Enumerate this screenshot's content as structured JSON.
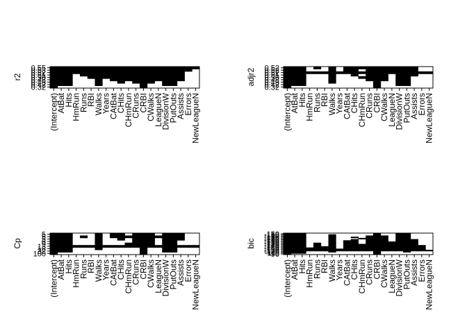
{
  "figure": {
    "background": "#ffffff",
    "fill_color": "#000000"
  },
  "chart_data": [
    {
      "type": "heatmap",
      "ylabel": "r2",
      "variables": [
        "(Intercept)",
        "AtBat",
        "Hits",
        "HmRun",
        "Runs",
        "RBI",
        "Walks",
        "Years",
        "CAtBat",
        "CHits",
        "CHmRun",
        "CRuns",
        "CRBI",
        "CWalks",
        "LeagueN",
        "DivisionW",
        "PutOuts",
        "Assists",
        "Errors",
        "NewLeagueN"
      ],
      "y_tick_labels": [
        "0.55",
        "0.53",
        "0.52",
        "0.51",
        "0.50",
        "0.48",
        "0.45",
        "0.42",
        "0.32"
      ],
      "included": [
        [
          1,
          1,
          1,
          1,
          1,
          1,
          1,
          1,
          1,
          1,
          1,
          1,
          1,
          1,
          1,
          1,
          1,
          1,
          1,
          1
        ],
        [
          1,
          1,
          1,
          1,
          1,
          1,
          1,
          1,
          1,
          1,
          1,
          1,
          1,
          1,
          1,
          1,
          1,
          1,
          1,
          0
        ],
        [
          1,
          1,
          1,
          1,
          1,
          1,
          1,
          1,
          1,
          1,
          1,
          1,
          1,
          1,
          1,
          1,
          1,
          1,
          0,
          0
        ],
        [
          1,
          1,
          1,
          0,
          1,
          1,
          1,
          1,
          1,
          1,
          1,
          1,
          1,
          1,
          1,
          1,
          1,
          1,
          0,
          0
        ],
        [
          1,
          1,
          1,
          0,
          0,
          1,
          1,
          1,
          1,
          1,
          1,
          1,
          1,
          1,
          1,
          1,
          1,
          1,
          0,
          0
        ],
        [
          1,
          1,
          1,
          0,
          0,
          0,
          1,
          0,
          1,
          1,
          1,
          1,
          1,
          1,
          1,
          1,
          1,
          1,
          0,
          0
        ],
        [
          1,
          1,
          1,
          0,
          0,
          0,
          1,
          0,
          0,
          1,
          0,
          1,
          1,
          1,
          0,
          1,
          1,
          0,
          0,
          0
        ],
        [
          1,
          1,
          1,
          0,
          0,
          0,
          1,
          0,
          0,
          0,
          0,
          0,
          1,
          0,
          0,
          1,
          1,
          0,
          0,
          0
        ],
        [
          1,
          0,
          0,
          0,
          0,
          0,
          0,
          0,
          0,
          0,
          0,
          0,
          1,
          0,
          0,
          0,
          0,
          0,
          0,
          0
        ]
      ]
    },
    {
      "type": "heatmap",
      "ylabel": "adjr2",
      "variables": [
        "(Intercept)",
        "AtBat",
        "Hits",
        "HmRun",
        "Runs",
        "RBI",
        "Walks",
        "Years",
        "CAtBat",
        "CHits",
        "CHmRun",
        "CRuns",
        "CRBI",
        "CWalks",
        "LeagueN",
        "DivisionW",
        "PutOuts",
        "Assists",
        "Errors",
        "NewLeagueN"
      ],
      "y_tick_labels": [
        "0.52",
        "0.52",
        "0.52",
        "0.51",
        "0.50",
        "0.48",
        "0.45",
        "0.42",
        "0.32"
      ],
      "included": [
        [
          1,
          1,
          1,
          0,
          1,
          0,
          1,
          0,
          1,
          1,
          1,
          1,
          1,
          1,
          1,
          1,
          1,
          1,
          0,
          0
        ],
        [
          1,
          1,
          1,
          0,
          0,
          0,
          1,
          0,
          1,
          1,
          0,
          1,
          1,
          1,
          1,
          1,
          1,
          1,
          0,
          0
        ],
        [
          1,
          1,
          1,
          1,
          1,
          1,
          1,
          1,
          1,
          1,
          1,
          1,
          1,
          1,
          1,
          1,
          1,
          1,
          1,
          1
        ],
        [
          1,
          1,
          1,
          0,
          0,
          0,
          1,
          0,
          0,
          1,
          0,
          1,
          1,
          1,
          0,
          1,
          1,
          1,
          0,
          0
        ],
        [
          1,
          1,
          1,
          0,
          0,
          0,
          1,
          0,
          0,
          0,
          1,
          1,
          1,
          1,
          0,
          1,
          1,
          0,
          0,
          0
        ],
        [
          1,
          1,
          1,
          0,
          0,
          0,
          1,
          0,
          0,
          0,
          0,
          1,
          1,
          1,
          0,
          1,
          1,
          0,
          0,
          0
        ],
        [
          1,
          1,
          1,
          0,
          0,
          0,
          1,
          0,
          0,
          0,
          0,
          0,
          1,
          0,
          0,
          1,
          1,
          0,
          0,
          0
        ],
        [
          1,
          1,
          1,
          0,
          0,
          0,
          0,
          0,
          0,
          0,
          0,
          0,
          1,
          0,
          0,
          1,
          1,
          0,
          0,
          0
        ],
        [
          1,
          0,
          0,
          0,
          0,
          0,
          0,
          0,
          0,
          0,
          0,
          0,
          1,
          0,
          0,
          0,
          0,
          0,
          0,
          0
        ]
      ]
    },
    {
      "type": "heatmap",
      "ylabel": "Cp",
      "variables": [
        "(Intercept)",
        "AtBat",
        "Hits",
        "HmRun",
        "Runs",
        "RBI",
        "Walks",
        "Years",
        "CAtBat",
        "CHits",
        "CHmRun",
        "CRuns",
        "CRBI",
        "CWalks",
        "LeagueN",
        "DivisionW",
        "PutOuts",
        "Assists",
        "Errors",
        "NewLeagueN"
      ],
      "y_tick_labels": [
        "5",
        "5",
        "5",
        "6",
        "9",
        "13",
        "18",
        "32",
        "100"
      ],
      "included": [
        [
          1,
          1,
          1,
          0,
          0,
          0,
          1,
          0,
          1,
          1,
          0,
          1,
          1,
          1,
          0,
          1,
          1,
          1,
          0,
          0
        ],
        [
          1,
          1,
          1,
          0,
          1,
          0,
          1,
          0,
          1,
          1,
          1,
          1,
          1,
          1,
          1,
          1,
          1,
          1,
          0,
          0
        ],
        [
          1,
          1,
          1,
          0,
          0,
          0,
          1,
          0,
          0,
          1,
          0,
          1,
          1,
          1,
          0,
          1,
          1,
          1,
          0,
          0
        ],
        [
          1,
          1,
          1,
          0,
          0,
          0,
          1,
          0,
          0,
          0,
          0,
          1,
          1,
          1,
          0,
          1,
          1,
          0,
          0,
          0
        ],
        [
          1,
          1,
          1,
          0,
          0,
          0,
          1,
          0,
          0,
          0,
          1,
          1,
          1,
          1,
          0,
          1,
          1,
          0,
          0,
          0
        ],
        [
          1,
          1,
          1,
          1,
          1,
          1,
          1,
          1,
          1,
          1,
          1,
          1,
          1,
          1,
          1,
          1,
          1,
          1,
          1,
          1
        ],
        [
          1,
          1,
          1,
          0,
          0,
          0,
          1,
          0,
          0,
          0,
          0,
          0,
          1,
          0,
          0,
          1,
          1,
          0,
          0,
          0
        ],
        [
          1,
          1,
          1,
          0,
          0,
          0,
          0,
          0,
          0,
          0,
          0,
          0,
          1,
          0,
          0,
          1,
          1,
          0,
          0,
          0
        ],
        [
          1,
          0,
          0,
          0,
          0,
          0,
          0,
          0,
          0,
          0,
          0,
          0,
          1,
          0,
          0,
          0,
          0,
          0,
          0,
          0
        ]
      ]
    },
    {
      "type": "heatmap",
      "ylabel": "bic",
      "variables": [
        "(Intercept)",
        "AtBat",
        "Hits",
        "HmRun",
        "Runs",
        "RBI",
        "Walks",
        "Years",
        "CAtBat",
        "CHits",
        "CHmRun",
        "CRuns",
        "CRBI",
        "CWalks",
        "LeagueN",
        "DivisionW",
        "PutOuts",
        "Assists",
        "Errors",
        "NewLeagueN"
      ],
      "y_tick_labels": [
        "-150",
        "-150",
        "-150",
        "-150",
        "-150",
        "-150",
        "-150",
        "-150",
        "-150",
        "-140",
        "-140",
        "-140",
        "-140",
        "-130",
        "-130",
        "-120",
        "-110",
        "-90"
      ],
      "included": [
        [
          1,
          1,
          1,
          0,
          0,
          0,
          0,
          0,
          0,
          0,
          0,
          0,
          1,
          0,
          0,
          1,
          1,
          0,
          0,
          0
        ],
        [
          1,
          1,
          1,
          0,
          0,
          0,
          1,
          0,
          0,
          0,
          0,
          0,
          1,
          0,
          0,
          1,
          1,
          0,
          0,
          0
        ],
        [
          1,
          1,
          1,
          0,
          0,
          0,
          1,
          0,
          0,
          0,
          0,
          1,
          1,
          1,
          0,
          1,
          1,
          0,
          0,
          0
        ],
        [
          1,
          1,
          1,
          0,
          0,
          0,
          1,
          0,
          0,
          1,
          0,
          1,
          1,
          1,
          0,
          1,
          1,
          0,
          0,
          0
        ],
        [
          1,
          1,
          1,
          0,
          0,
          0,
          1,
          0,
          0,
          0,
          1,
          1,
          1,
          1,
          0,
          1,
          1,
          0,
          0,
          0
        ],
        [
          1,
          1,
          1,
          0,
          0,
          0,
          1,
          0,
          0,
          1,
          0,
          1,
          1,
          1,
          0,
          1,
          1,
          1,
          0,
          0
        ],
        [
          1,
          1,
          1,
          0,
          0,
          0,
          1,
          0,
          1,
          1,
          0,
          1,
          1,
          1,
          0,
          1,
          1,
          1,
          0,
          0
        ],
        [
          1,
          1,
          1,
          0,
          0,
          0,
          1,
          0,
          1,
          1,
          0,
          1,
          1,
          1,
          1,
          1,
          1,
          1,
          0,
          0
        ],
        [
          1,
          1,
          1,
          0,
          1,
          0,
          1,
          0,
          1,
          1,
          0,
          1,
          1,
          1,
          1,
          1,
          1,
          1,
          0,
          0
        ],
        [
          1,
          1,
          1,
          0,
          1,
          0,
          1,
          0,
          1,
          1,
          1,
          1,
          1,
          1,
          1,
          1,
          1,
          1,
          0,
          0
        ],
        [
          1,
          1,
          1,
          0,
          1,
          0,
          1,
          0,
          1,
          1,
          1,
          1,
          1,
          1,
          1,
          1,
          1,
          1,
          1,
          0
        ],
        [
          1,
          1,
          1,
          0,
          1,
          1,
          1,
          0,
          1,
          1,
          1,
          1,
          1,
          1,
          1,
          1,
          1,
          1,
          1,
          0
        ],
        [
          1,
          1,
          1,
          1,
          1,
          1,
          1,
          0,
          1,
          1,
          1,
          1,
          1,
          1,
          1,
          1,
          1,
          1,
          1,
          0
        ],
        [
          1,
          1,
          1,
          1,
          1,
          1,
          1,
          1,
          1,
          1,
          1,
          1,
          1,
          1,
          1,
          1,
          1,
          1,
          1,
          0
        ],
        [
          1,
          1,
          1,
          1,
          1,
          1,
          1,
          1,
          1,
          1,
          1,
          1,
          1,
          1,
          1,
          1,
          1,
          1,
          1,
          1
        ],
        [
          1,
          1,
          1,
          0,
          0,
          0,
          1,
          0,
          0,
          0,
          0,
          0,
          1,
          0,
          0,
          0,
          1,
          0,
          0,
          0
        ],
        [
          1,
          1,
          1,
          0,
          0,
          0,
          0,
          0,
          0,
          0,
          0,
          0,
          1,
          0,
          0,
          0,
          0,
          0,
          0,
          0
        ],
        [
          1,
          0,
          0,
          0,
          0,
          0,
          0,
          0,
          0,
          0,
          0,
          0,
          1,
          0,
          0,
          0,
          0,
          0,
          0,
          0
        ]
      ]
    }
  ]
}
